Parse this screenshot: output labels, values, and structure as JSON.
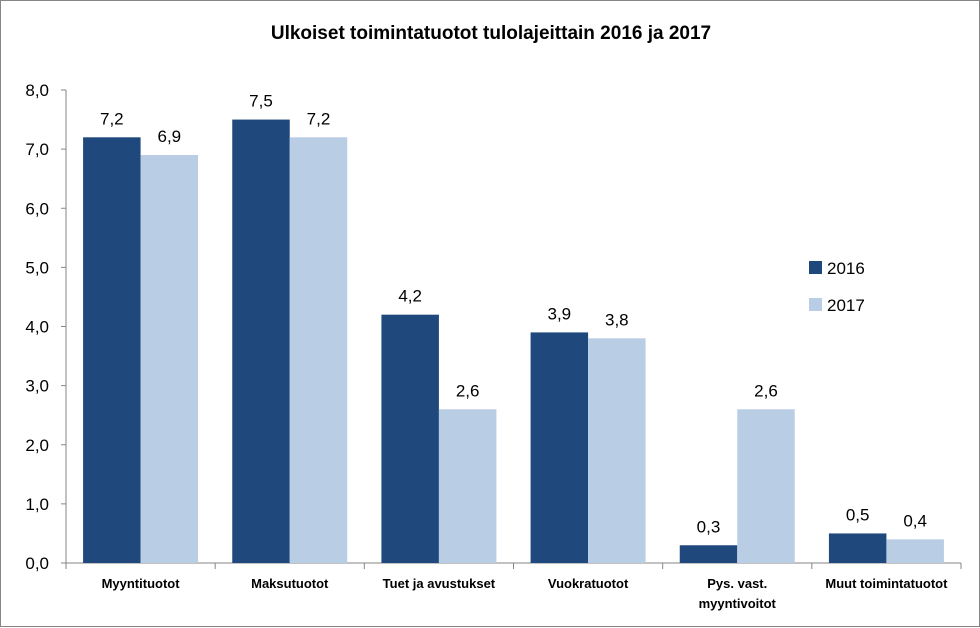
{
  "chart_data": {
    "type": "bar",
    "title": "Ulkoiset  toimintatuotot  tulolajeittain  2016 ja 2017",
    "categories": [
      [
        "Myyntituotot"
      ],
      [
        "Maksutuotot"
      ],
      [
        "Tuet ja avustukset"
      ],
      [
        "Vuokratuotot"
      ],
      [
        "Pys. vast.",
        "myyntivoitot"
      ],
      [
        "Muut toimintatuotot"
      ]
    ],
    "series": [
      {
        "name": "2016",
        "color": "#1F497D",
        "values": [
          7.2,
          7.5,
          4.2,
          3.9,
          0.3,
          0.5
        ],
        "labels": [
          "7,2",
          "7,5",
          "4,2",
          "3,9",
          "0,3",
          "0,5"
        ]
      },
      {
        "name": "2017",
        "color": "#B9CDE5",
        "values": [
          6.9,
          7.2,
          2.6,
          3.8,
          2.6,
          0.4
        ],
        "labels": [
          "6,9",
          "7,2",
          "2,6",
          "3,8",
          "2,6",
          "0,4"
        ]
      }
    ],
    "ylim": [
      0,
      8
    ],
    "yticks": [
      0,
      1,
      2,
      3,
      4,
      5,
      6,
      7,
      8
    ],
    "ytick_labels": [
      "0,0",
      "1,0",
      "2,0",
      "3,0",
      "4,0",
      "5,0",
      "6,0",
      "7,0",
      "8,0"
    ],
    "xlabel": "",
    "ylabel": "",
    "grid": false,
    "legend_position": "right"
  }
}
